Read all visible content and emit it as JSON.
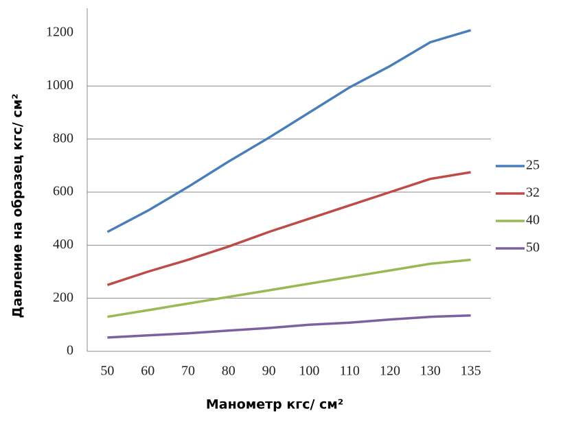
{
  "chart_data": {
    "type": "line",
    "x_label": "Манометр кгс/ см²",
    "y_label": "Давление на образец кгс/ см²",
    "categories": [
      "50",
      "60",
      "70",
      "80",
      "90",
      "100",
      "110",
      "120",
      "130",
      "135"
    ],
    "series": [
      {
        "name": "25",
        "color": "#4a7ebb",
        "values": [
          450,
          530,
          620,
          715,
          805,
          900,
          995,
          1075,
          1165,
          1210
        ]
      },
      {
        "name": "32",
        "color": "#be4b48",
        "values": [
          250,
          300,
          345,
          395,
          450,
          500,
          550,
          600,
          650,
          675
        ]
      },
      {
        "name": "40",
        "color": "#98b954",
        "values": [
          130,
          155,
          180,
          205,
          230,
          255,
          280,
          305,
          330,
          345
        ]
      },
      {
        "name": "50",
        "color": "#7d60a0",
        "values": [
          52,
          60,
          68,
          78,
          88,
          100,
          108,
          120,
          130,
          135
        ]
      }
    ],
    "ylim": [
      0,
      1200
    ],
    "yticks": [
      0,
      200,
      400,
      600,
      800,
      1000,
      1200
    ],
    "grid": true,
    "legend": "right"
  }
}
